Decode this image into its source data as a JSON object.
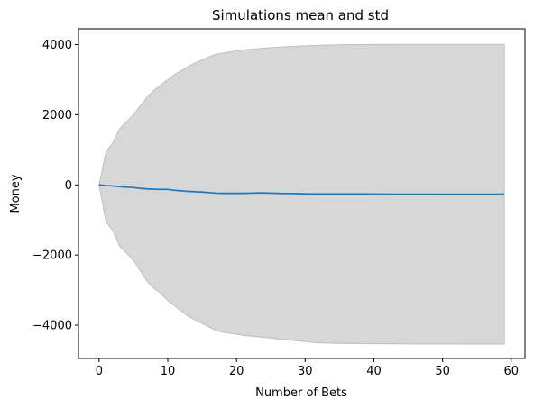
{
  "chart_data": {
    "type": "area",
    "title": "Simulations mean and std",
    "xlabel": "Number of Bets",
    "ylabel": "Money",
    "xlim": [
      -3,
      62
    ],
    "ylim": [
      -4950,
      4450
    ],
    "xticks": [
      0,
      10,
      20,
      30,
      40,
      50,
      60
    ],
    "yticks": [
      -4000,
      -2000,
      0,
      2000,
      4000
    ],
    "ytick_labels": [
      "−4000",
      "−2000",
      "0",
      "2000",
      "4000"
    ],
    "grid": false,
    "colors": {
      "mean_line": "#1f77b4",
      "std_band": "#d3d3d3",
      "std_band_edge": "#bfbfbf"
    },
    "x": [
      0,
      1,
      2,
      3,
      4,
      5,
      6,
      7,
      8,
      9,
      10,
      11,
      12,
      13,
      14,
      15,
      16,
      17,
      18,
      19,
      20,
      21,
      22,
      23,
      24,
      25,
      26,
      27,
      28,
      29,
      30,
      31,
      32,
      33,
      34,
      35,
      36,
      37,
      38,
      39,
      40,
      41,
      42,
      43,
      44,
      45,
      46,
      47,
      48,
      49,
      50,
      51,
      52,
      53,
      54,
      55,
      56,
      57,
      58,
      59
    ],
    "series": [
      {
        "kind": "line",
        "values": [
          0,
          -20,
          -30,
          -50,
          -65,
          -75,
          -100,
          -115,
          -125,
          -130,
          -130,
          -155,
          -170,
          -185,
          -195,
          -205,
          -220,
          -235,
          -240,
          -240,
          -240,
          -240,
          -235,
          -230,
          -230,
          -235,
          -240,
          -245,
          -245,
          -250,
          -255,
          -260,
          -260,
          -260,
          -260,
          -260,
          -260,
          -260,
          -260,
          -260,
          -262,
          -263,
          -264,
          -264,
          -265,
          -265,
          -265,
          -265,
          -265,
          -265,
          -266,
          -266,
          -266,
          -266,
          -266,
          -266,
          -266,
          -266,
          -266,
          -266
        ]
      },
      {
        "kind": "band",
        "upper": [
          0,
          950,
          1200,
          1600,
          1800,
          2000,
          2250,
          2500,
          2700,
          2850,
          3000,
          3150,
          3260,
          3380,
          3480,
          3560,
          3650,
          3720,
          3760,
          3790,
          3820,
          3845,
          3865,
          3880,
          3900,
          3915,
          3925,
          3935,
          3945,
          3955,
          3965,
          3975,
          3980,
          3985,
          3990,
          3995,
          3998,
          4000,
          4001,
          4002,
          4003,
          4004,
          4005,
          4005,
          4006,
          4006,
          4006,
          4007,
          4007,
          4007,
          4007,
          4007,
          4008,
          4008,
          4008,
          4008,
          4008,
          4008,
          4008,
          4008
        ],
        "lower": [
          0,
          -1050,
          -1300,
          -1750,
          -1950,
          -2150,
          -2450,
          -2750,
          -2950,
          -3100,
          -3300,
          -3450,
          -3600,
          -3750,
          -3850,
          -3950,
          -4050,
          -4150,
          -4200,
          -4230,
          -4260,
          -4290,
          -4310,
          -4330,
          -4350,
          -4370,
          -4390,
          -4410,
          -4430,
          -4450,
          -4470,
          -4490,
          -4505,
          -4510,
          -4515,
          -4520,
          -4522,
          -4524,
          -4526,
          -4528,
          -4530,
          -4531,
          -4532,
          -4533,
          -4534,
          -4535,
          -4535,
          -4536,
          -4536,
          -4537,
          -4537,
          -4537,
          -4537,
          -4538,
          -4538,
          -4538,
          -4538,
          -4538,
          -4538,
          -4538
        ]
      }
    ]
  }
}
